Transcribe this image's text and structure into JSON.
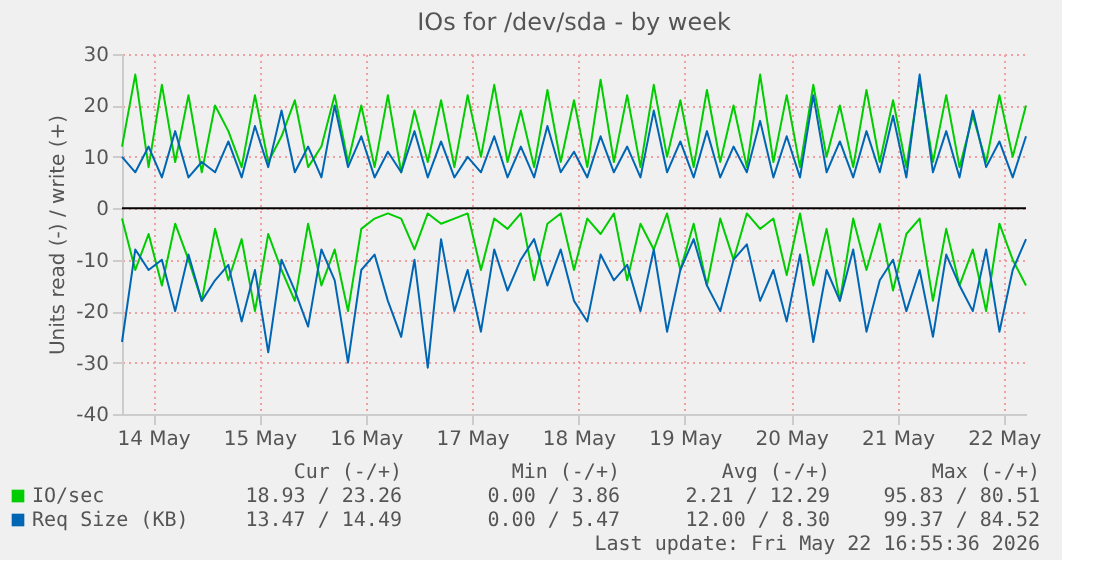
{
  "chart_data": {
    "type": "line",
    "title": "IOs for /dev/sda - by week",
    "ylabel": "Units read (-) / write (+)",
    "x": [
      "2026-05-14T05:00",
      "2026-05-14T08:00",
      "2026-05-14T11:00",
      "2026-05-14T14:00",
      "2026-05-14T17:00",
      "2026-05-14T20:00",
      "2026-05-14T23:00",
      "2026-05-15T02:00",
      "2026-05-15T05:00",
      "2026-05-15T08:00",
      "2026-05-15T11:00",
      "2026-05-15T14:00",
      "2026-05-15T17:00",
      "2026-05-15T20:00",
      "2026-05-15T23:00",
      "2026-05-16T02:00",
      "2026-05-16T05:00",
      "2026-05-16T08:00",
      "2026-05-16T11:00",
      "2026-05-16T14:00",
      "2026-05-16T17:00",
      "2026-05-16T20:00",
      "2026-05-16T23:00",
      "2026-05-17T02:00",
      "2026-05-17T05:00",
      "2026-05-17T08:00",
      "2026-05-17T11:00",
      "2026-05-17T14:00",
      "2026-05-17T17:00",
      "2026-05-17T20:00",
      "2026-05-17T23:00",
      "2026-05-18T02:00",
      "2026-05-18T05:00",
      "2026-05-18T08:00",
      "2026-05-18T11:00",
      "2026-05-18T14:00",
      "2026-05-18T17:00",
      "2026-05-18T20:00",
      "2026-05-18T23:00",
      "2026-05-19T02:00",
      "2026-05-19T05:00",
      "2026-05-19T08:00",
      "2026-05-19T11:00",
      "2026-05-19T14:00",
      "2026-05-19T17:00",
      "2026-05-19T20:00",
      "2026-05-19T23:00",
      "2026-05-20T02:00",
      "2026-05-20T05:00",
      "2026-05-20T08:00",
      "2026-05-20T11:00",
      "2026-05-20T14:00",
      "2026-05-20T17:00",
      "2026-05-20T20:00",
      "2026-05-20T23:00",
      "2026-05-21T02:00",
      "2026-05-21T05:00",
      "2026-05-21T08:00",
      "2026-05-21T11:00",
      "2026-05-21T14:00",
      "2026-05-21T17:00",
      "2026-05-21T20:00",
      "2026-05-21T23:00",
      "2026-05-22T02:00",
      "2026-05-22T05:00",
      "2026-05-22T08:00",
      "2026-05-22T11:00",
      "2026-05-22T14:00",
      "2026-05-22T17:00"
    ],
    "series": [
      {
        "color": "#00cc00",
        "values": [
          -2,
          -12,
          -5,
          -15,
          -3,
          -10,
          -18,
          -4,
          -14,
          -6,
          -20,
          -5,
          -12,
          -18,
          -3,
          -15,
          -8,
          -20,
          -4,
          -2,
          -1,
          -2,
          -8,
          -1,
          -3,
          -2,
          -1,
          -12,
          -2,
          -4,
          -1,
          -14,
          -3,
          -1,
          -12,
          -2,
          -5,
          -1,
          -14,
          -3,
          -8,
          -1,
          -12,
          -3,
          -15,
          -2,
          -10,
          -1,
          -4,
          -2,
          -13,
          -1,
          -15,
          -4,
          -18,
          -2,
          -12,
          -3,
          -16,
          -5,
          -2,
          -18,
          -4,
          -15,
          -8,
          -20,
          -3,
          -10,
          -15
        ]
      },
      {
        "name": "IO/sec",
        "color": "#00cc00",
        "values": [
          12,
          26,
          8,
          24,
          9,
          22,
          7,
          20,
          15,
          8,
          22,
          9,
          14,
          21,
          8,
          12,
          22,
          9,
          20,
          8,
          22,
          7,
          19,
          9,
          21,
          8,
          22,
          10,
          24,
          9,
          19,
          8,
          23,
          9,
          21,
          8,
          25,
          9,
          22,
          8,
          24,
          10,
          21,
          8,
          23,
          9,
          20,
          8,
          26,
          9,
          22,
          8,
          24,
          10,
          20,
          8,
          23,
          9,
          21,
          8,
          25,
          9,
          22,
          8,
          18,
          9,
          22,
          10,
          20
        ]
      },
      {
        "color": "#0066b3",
        "values": [
          -26,
          -8,
          -12,
          -10,
          -20,
          -9,
          -18,
          -14,
          -11,
          -22,
          -12,
          -28,
          -10,
          -16,
          -23,
          -8,
          -14,
          -30,
          -12,
          -9,
          -18,
          -25,
          -10,
          -31,
          -6,
          -20,
          -12,
          -24,
          -8,
          -16,
          -10,
          -6,
          -15,
          -8,
          -18,
          -22,
          -9,
          -14,
          -11,
          -20,
          -8,
          -24,
          -12,
          -6,
          -15,
          -20,
          -10,
          -7,
          -18,
          -12,
          -22,
          -9,
          -26,
          -12,
          -18,
          -8,
          -24,
          -14,
          -10,
          -20,
          -12,
          -25,
          -9,
          -15,
          -20,
          -8,
          -24,
          -12,
          -6
        ]
      },
      {
        "name": "Req Size (KB)",
        "color": "#0066b3",
        "values": [
          10,
          7,
          12,
          6,
          15,
          6,
          9,
          7,
          13,
          6,
          16,
          8,
          19,
          7,
          12,
          6,
          20,
          8,
          14,
          6,
          11,
          7,
          15,
          6,
          13,
          6,
          10,
          7,
          14,
          6,
          12,
          6,
          16,
          7,
          11,
          6,
          14,
          7,
          12,
          6,
          19,
          7,
          13,
          6,
          15,
          6,
          12,
          7,
          17,
          6,
          14,
          6,
          22,
          7,
          13,
          6,
          15,
          7,
          18,
          6,
          26,
          7,
          15,
          6,
          19,
          8,
          13,
          6,
          14
        ]
      }
    ],
    "xlim": [
      "2026-05-14T05:00",
      "2026-05-22T17:00"
    ],
    "xticks": [
      {
        "value": "2026-05-14T12:00",
        "label": "14 May"
      },
      {
        "value": "2026-05-15T12:00",
        "label": "15 May"
      },
      {
        "value": "2026-05-16T12:00",
        "label": "16 May"
      },
      {
        "value": "2026-05-17T12:00",
        "label": "17 May"
      },
      {
        "value": "2026-05-18T12:00",
        "label": "18 May"
      },
      {
        "value": "2026-05-19T12:00",
        "label": "19 May"
      },
      {
        "value": "2026-05-20T12:00",
        "label": "20 May"
      },
      {
        "value": "2026-05-21T12:00",
        "label": "21 May"
      },
      {
        "value": "2026-05-22T12:00",
        "label": "22 May"
      }
    ],
    "ylim": [
      -40,
      30
    ],
    "yticks": [
      -40,
      -30,
      -20,
      -10,
      0,
      10,
      20,
      30
    ],
    "grid": true,
    "legend": "bottom left",
    "ref_lines": [
      {
        "axis": "y",
        "value": 0,
        "color": "#000000"
      }
    ],
    "annotations": [
      "Cur (-/+)",
      "Min (-/+)",
      "Avg (-/+)",
      "Max (-/+)",
      "18.93 / 23.26",
      "0.00 /  3.86",
      "2.21 / 12.29",
      "95.83 / 80.51",
      "13.47 / 14.49",
      "0.00 /  5.47",
      "12.00 /  8.30",
      "99.37 / 84.52",
      "Last update: Fri May 22 16:55:36 2026"
    ]
  }
}
